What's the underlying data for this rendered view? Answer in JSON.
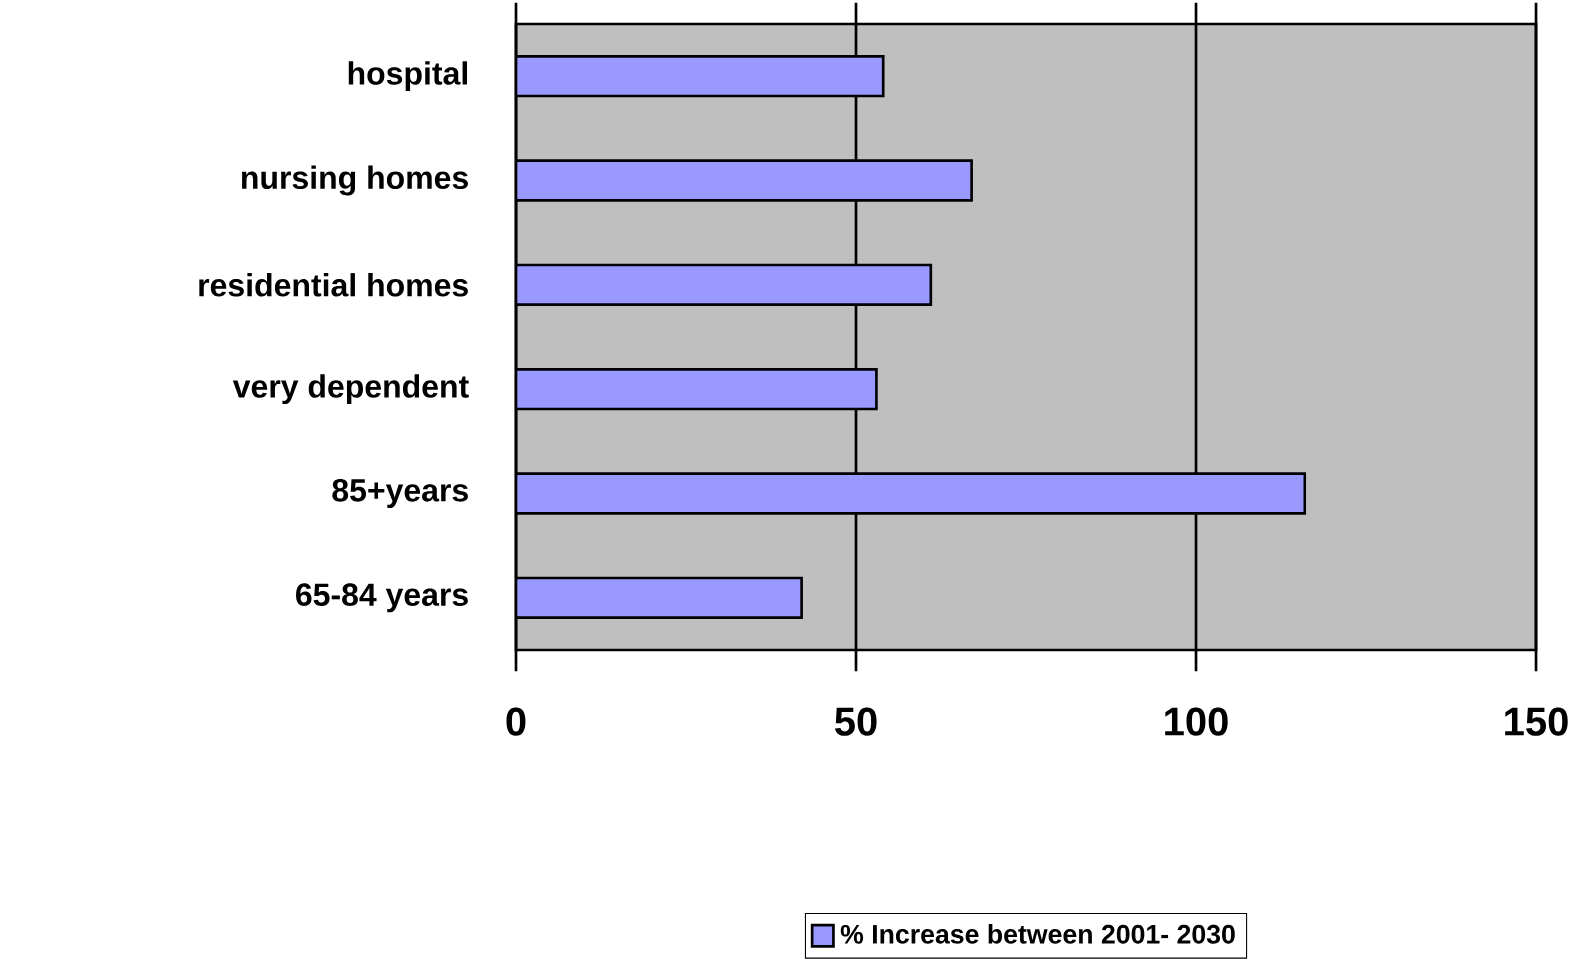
{
  "chart_data": {
    "type": "bar",
    "orientation": "horizontal",
    "categories": [
      "hospital",
      "nursing homes",
      "residential homes",
      "very dependent",
      "85+years",
      "65-84 years"
    ],
    "series": [
      {
        "name": "% Increase between 2001- 2030",
        "color": "#9999ff",
        "values": [
          54,
          67,
          61,
          53,
          116,
          42
        ]
      }
    ],
    "xlim": [
      0,
      150
    ],
    "xticks": [
      0,
      50,
      100,
      150
    ],
    "grid": "x",
    "legend": "bottom"
  }
}
